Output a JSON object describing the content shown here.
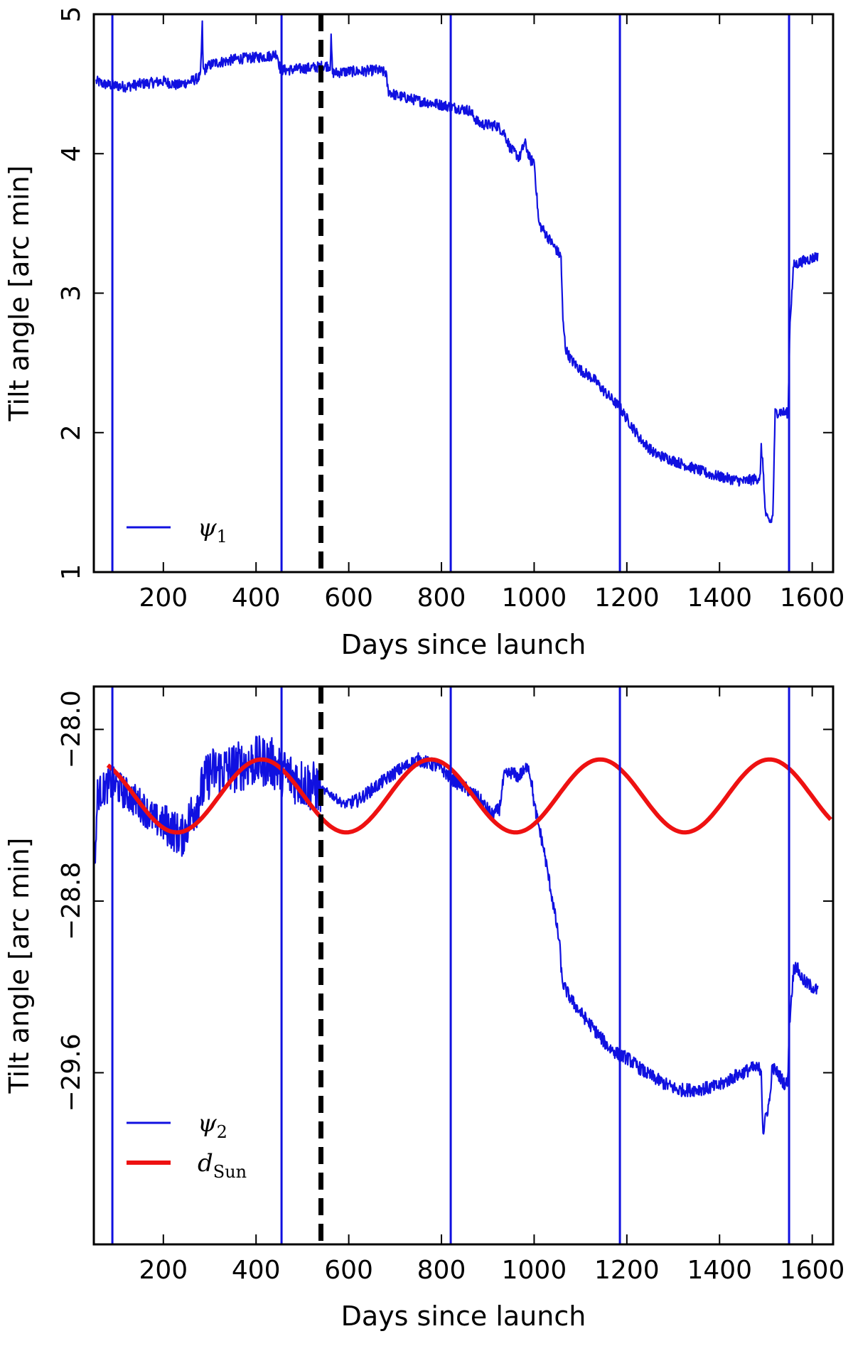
{
  "chart_data": [
    {
      "type": "line",
      "xlabel": "Days since launch",
      "ylabel": "Tilt angle [arc min]",
      "xlim": [
        50,
        1645
      ],
      "ylim": [
        1,
        5
      ],
      "xticks": [
        200,
        400,
        600,
        800,
        1000,
        1200,
        1400,
        1600
      ],
      "yticks": [
        1,
        2,
        3,
        4,
        5
      ],
      "ytick_labels": [
        "1",
        "2",
        "3",
        "4",
        "5"
      ],
      "grid": false,
      "legend_position": "lower-left",
      "vertical_lines": {
        "solid_blue": [
          90,
          455,
          820,
          1185,
          1550
        ],
        "dashed_black": [
          540
        ]
      },
      "series": [
        {
          "name": "ψ1",
          "label_main": "ψ",
          "label_sub": "1",
          "color": "#1010e0",
          "x": [
            55,
            70,
            90,
            120,
            150,
            180,
            200,
            230,
            260,
            280,
            284,
            286,
            290,
            292,
            310,
            330,
            360,
            400,
            430,
            445,
            452,
            456,
            470,
            500,
            530,
            545,
            560,
            562,
            565,
            570,
            600,
            630,
            660,
            680,
            685,
            700,
            750,
            800,
            815,
            830,
            860,
            880,
            890,
            920,
            935,
            950,
            960,
            968,
            980,
            992,
            1000,
            1010,
            1030,
            1050,
            1058,
            1062,
            1068,
            1080,
            1100,
            1130,
            1150,
            1185,
            1200,
            1230,
            1260,
            1300,
            1340,
            1380,
            1420,
            1450,
            1480,
            1488,
            1490,
            1495,
            1498,
            1502,
            1510,
            1515,
            1520,
            1530,
            1545,
            1548,
            1552,
            1560,
            1580,
            1600,
            1612
          ],
          "values": [
            4.52,
            4.5,
            4.49,
            4.48,
            4.5,
            4.51,
            4.52,
            4.49,
            4.52,
            4.55,
            4.92,
            4.6,
            4.6,
            4.62,
            4.65,
            4.66,
            4.68,
            4.69,
            4.7,
            4.72,
            4.61,
            4.6,
            4.6,
            4.61,
            4.62,
            4.63,
            4.63,
            4.82,
            4.58,
            4.58,
            4.59,
            4.59,
            4.6,
            4.58,
            4.45,
            4.42,
            4.38,
            4.35,
            4.34,
            4.33,
            4.31,
            4.22,
            4.21,
            4.2,
            4.15,
            4.03,
            4.0,
            3.97,
            4.08,
            3.95,
            3.95,
            3.5,
            3.4,
            3.3,
            3.26,
            2.8,
            2.6,
            2.52,
            2.45,
            2.38,
            2.3,
            2.18,
            2.1,
            1.95,
            1.85,
            1.8,
            1.75,
            1.7,
            1.67,
            1.65,
            1.67,
            1.68,
            1.9,
            1.7,
            1.45,
            1.38,
            1.36,
            1.4,
            2.14,
            2.15,
            2.14,
            2.15,
            2.8,
            3.2,
            3.23,
            3.25,
            3.27
          ]
        }
      ]
    },
    {
      "type": "line",
      "xlabel": "Days since launch",
      "ylabel": "Tilt angle [arc min]",
      "xlim": [
        50,
        1645
      ],
      "ylim": [
        -30.4,
        -27.8
      ],
      "xticks": [
        200,
        400,
        600,
        800,
        1000,
        1200,
        1400,
        1600
      ],
      "yticks": [
        -28.0,
        -28.8,
        -29.6
      ],
      "ytick_labels": [
        "−28.0",
        "−28.8",
        "−29.6"
      ],
      "grid": false,
      "legend_position": "lower-left",
      "vertical_lines": {
        "solid_blue": [
          90,
          455,
          820,
          1185,
          1550
        ],
        "dashed_black": [
          540
        ]
      },
      "series": [
        {
          "name": "ψ2",
          "label_main": "ψ",
          "label_sub": "2",
          "color": "#1010e0",
          "noise": [
            {
              "from": 55,
              "to": 200,
              "amplitude": 0.08
            },
            {
              "from": 200,
              "to": 260,
              "amplitude": 0.1
            },
            {
              "from": 260,
              "to": 540,
              "amplitude": 0.12
            },
            {
              "from": 540,
              "to": 600,
              "amplitude": 0.02
            }
          ],
          "x": [
            52,
            58,
            70,
            90,
            120,
            150,
            180,
            210,
            240,
            260,
            300,
            350,
            400,
            430,
            460,
            500,
            540,
            560,
            590,
            620,
            650,
            700,
            750,
            800,
            820,
            850,
            880,
            910,
            925,
            935,
            950,
            965,
            975,
            980,
            985,
            995,
            1000,
            1020,
            1040,
            1055,
            1060,
            1065,
            1080,
            1100,
            1130,
            1160,
            1185,
            1200,
            1240,
            1280,
            1310,
            1340,
            1380,
            1400,
            1430,
            1470,
            1490,
            1492,
            1494,
            1497,
            1500,
            1505,
            1510,
            1512,
            1515,
            1525,
            1540,
            1547,
            1550,
            1555,
            1560,
            1565,
            1575,
            1585,
            1600,
            1612
          ],
          "values": [
            -28.65,
            -28.3,
            -28.28,
            -28.25,
            -28.3,
            -28.35,
            -28.42,
            -28.45,
            -28.5,
            -28.4,
            -28.2,
            -28.18,
            -28.15,
            -28.15,
            -28.2,
            -28.25,
            -28.28,
            -28.3,
            -28.35,
            -28.33,
            -28.28,
            -28.2,
            -28.14,
            -28.18,
            -28.23,
            -28.27,
            -28.32,
            -28.4,
            -28.37,
            -28.22,
            -28.2,
            -28.22,
            -28.2,
            -28.2,
            -28.15,
            -28.25,
            -28.35,
            -28.55,
            -28.8,
            -29.0,
            -29.17,
            -29.2,
            -29.26,
            -29.32,
            -29.4,
            -29.48,
            -29.52,
            -29.53,
            -29.6,
            -29.65,
            -29.68,
            -29.68,
            -29.67,
            -29.66,
            -29.62,
            -29.58,
            -29.58,
            -29.75,
            -29.88,
            -29.85,
            -29.8,
            -29.76,
            -29.7,
            -29.6,
            -29.58,
            -29.6,
            -29.65,
            -29.65,
            -29.4,
            -29.25,
            -29.12,
            -29.1,
            -29.15,
            -29.18,
            -29.2,
            -29.22
          ]
        },
        {
          "name": "dSun",
          "label_main": "d",
          "label_sub": "Sun",
          "color": "#ee1111",
          "model": {
            "kind": "sinusoid",
            "mean": -28.31,
            "amplitude": 0.17,
            "period": 365.25,
            "peak_x": 412
          },
          "x_range": [
            80,
            1640
          ]
        }
      ]
    }
  ]
}
